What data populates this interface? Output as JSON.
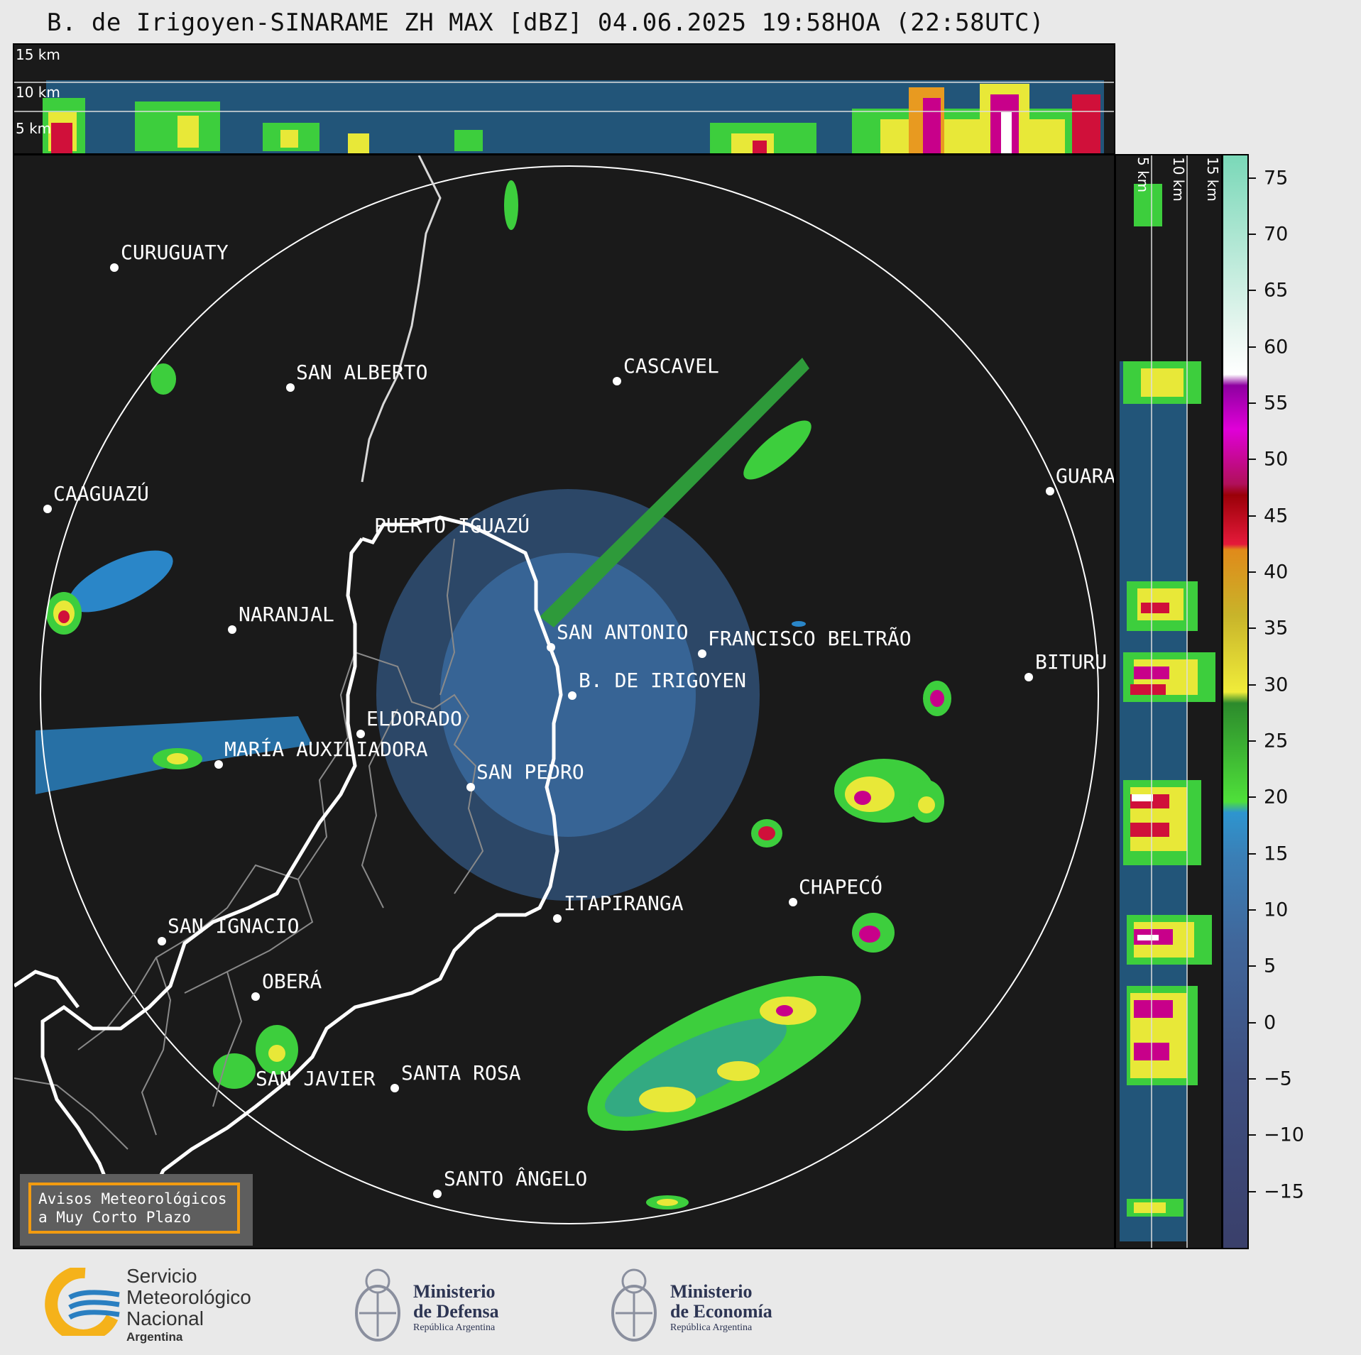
{
  "title": "B. de Irigoyen-SINARAME ZH MAX [dBZ] 04.06.2025 19:58HOA (22:58UTC)",
  "top_panel": {
    "km_labels": [
      "15 km",
      "10 km",
      "5 km"
    ]
  },
  "side_panel": {
    "km_labels": [
      "5 km",
      "10 km",
      "15 km"
    ]
  },
  "cities": [
    {
      "name": "CURUGUATY"
    },
    {
      "name": "SAN ALBERTO"
    },
    {
      "name": "CASCAVEL"
    },
    {
      "name": "CAAGUAZÚ"
    },
    {
      "name": "PUERTO IGUAZÚ"
    },
    {
      "name": "GUARA"
    },
    {
      "name": "NARANJAL"
    },
    {
      "name": "SAN ANTONIO"
    },
    {
      "name": "FRANCISCO BELTRÃO"
    },
    {
      "name": "BITURU"
    },
    {
      "name": "B. DE IRIGOYEN"
    },
    {
      "name": "ELDORADO"
    },
    {
      "name": "MARÍA AUXILIADORA"
    },
    {
      "name": "SAN PEDRO"
    },
    {
      "name": "CHAPECÓ"
    },
    {
      "name": "ITAPIRANGA"
    },
    {
      "name": "SAN IGNACIO"
    },
    {
      "name": "OBERÁ"
    },
    {
      "name": "SAN JAVIER"
    },
    {
      "name": "SANTA ROSA"
    },
    {
      "name": "SANTO ÂNGELO"
    }
  ],
  "colorbar": {
    "min": -20,
    "max": 77,
    "ticks": [
      "75",
      "70",
      "65",
      "60",
      "55",
      "50",
      "45",
      "40",
      "35",
      "30",
      "25",
      "20",
      "15",
      "10",
      "5",
      "0",
      "−5",
      "−10",
      "−15"
    ],
    "tick_values": [
      75,
      70,
      65,
      60,
      55,
      50,
      45,
      40,
      35,
      30,
      25,
      20,
      15,
      10,
      5,
      0,
      -5,
      -10,
      -15
    ]
  },
  "warning_box": {
    "line1": "Avisos Meteorológicos",
    "line2": "a Muy Corto Plazo"
  },
  "footer": {
    "smn": {
      "line1": "Servicio",
      "line2": "Meteorológico",
      "line3": "Nacional",
      "line4": "Argentina"
    },
    "defensa": {
      "line1": "Ministerio",
      "line2": "de Defensa",
      "line3": "República Argentina"
    },
    "economia": {
      "line1": "Ministerio",
      "line2": "de Economía",
      "line3": "República Argentina"
    }
  },
  "colors": {
    "ring": "#ffffff",
    "border_line": "#ffffff",
    "background": "#1a1a1a",
    "accent_orange": "#f29b10",
    "smn_blue": "#2a7fc1",
    "smn_yellow": "#f5b21a"
  }
}
